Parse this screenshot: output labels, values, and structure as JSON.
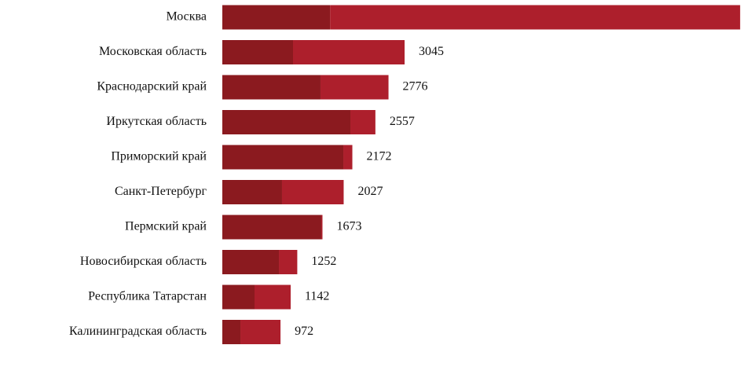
{
  "chart_data": {
    "type": "stacked-bar-horizontal",
    "categories": [
      "Москва",
      "Московская область",
      "Краснодарский край",
      "Иркутская область",
      "Приморский край",
      "Санкт-Петербург",
      "Пермский край",
      "Новосибирская область",
      "Республика Татарстан",
      "Калининградская область"
    ],
    "series": [
      {
        "color": "#8b1a1f",
        "values": [
          1800,
          1181,
          1640,
          2139,
          2021,
          997,
          1653,
          945,
          538,
          302
        ]
      },
      {
        "color": "#ad1f2c",
        "values": [
          6850,
          1864,
          1136,
          418,
          151,
          1030,
          20,
          307,
          604,
          670
        ]
      }
    ],
    "totals": [
      null,
      3045,
      2776,
      2557,
      2172,
      2027,
      1673,
      1252,
      1142,
      972
    ],
    "xlim": [
      0,
      8700
    ]
  }
}
